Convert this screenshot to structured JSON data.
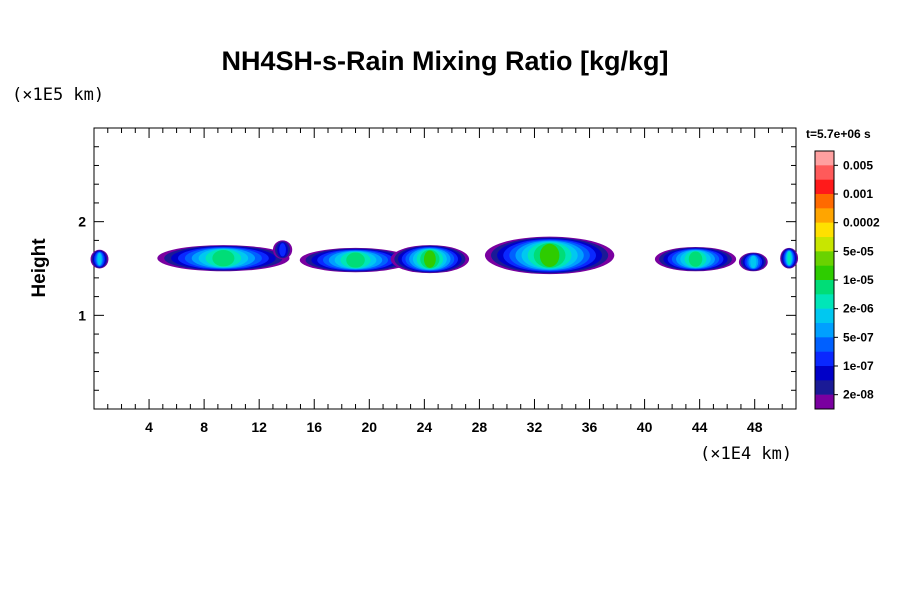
{
  "chart_data": {
    "type": "heatmap",
    "title": "NH4SH-s-Rain Mixing Ratio [kg/kg]",
    "xlabel": "",
    "ylabel": "Height",
    "x_unit": "(×1E4 km)",
    "y_unit": "(×1E5 km)",
    "time_label": "t=5.7e+06 s",
    "xlim": [
      0,
      51
    ],
    "ylim": [
      0,
      3
    ],
    "x_ticks": [
      4,
      8,
      12,
      16,
      20,
      24,
      28,
      32,
      36,
      40,
      44,
      48
    ],
    "y_ticks": [
      1,
      2
    ],
    "colorbar": {
      "labels": [
        "0.005",
        "0.001",
        "0.0002",
        "5e-05",
        "1e-05",
        "2e-06",
        "5e-07",
        "1e-07",
        "2e-08"
      ],
      "colors": [
        "#ffa0a0",
        "#ff5a5a",
        "#ff1a1a",
        "#ff6a00",
        "#ffa500",
        "#ffe000",
        "#c8e600",
        "#6ad200",
        "#2ecc00",
        "#00dd77",
        "#00e6b8",
        "#00c8f0",
        "#00a0ff",
        "#0060ff",
        "#0a28ff",
        "#0000c8",
        "#1a1a96",
        "#7a00a0"
      ]
    },
    "cells": [
      {
        "x": 0.4,
        "y": 1.6,
        "w": 1.3,
        "h": 0.2,
        "level": 7
      },
      {
        "x": 9.4,
        "y": 1.61,
        "w": 9.6,
        "h": 0.28,
        "level": 9
      },
      {
        "x": 13.7,
        "y": 1.7,
        "w": 1.4,
        "h": 0.2,
        "level": 4
      },
      {
        "x": 19.0,
        "y": 1.59,
        "w": 8.1,
        "h": 0.26,
        "level": 9
      },
      {
        "x": 24.4,
        "y": 1.6,
        "w": 5.7,
        "h": 0.3,
        "level": 10
      },
      {
        "x": 33.1,
        "y": 1.64,
        "w": 9.4,
        "h": 0.4,
        "level": 10
      },
      {
        "x": 43.7,
        "y": 1.6,
        "w": 5.9,
        "h": 0.26,
        "level": 9
      },
      {
        "x": 47.9,
        "y": 1.57,
        "w": 2.1,
        "h": 0.2,
        "level": 7
      },
      {
        "x": 50.5,
        "y": 1.61,
        "w": 1.3,
        "h": 0.22,
        "level": 8
      }
    ]
  }
}
